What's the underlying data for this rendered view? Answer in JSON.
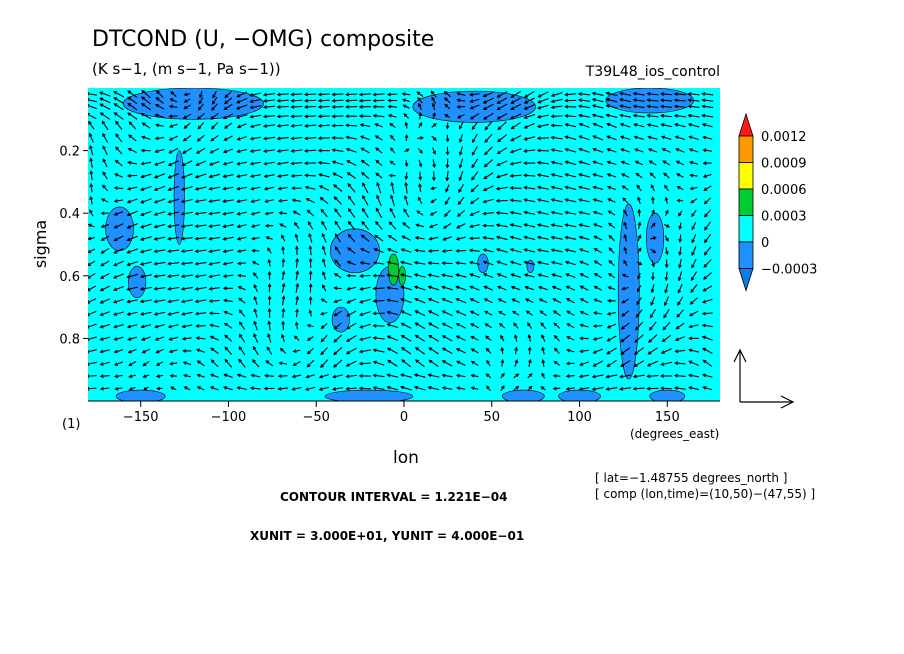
{
  "chart_data": {
    "type": "contour-vector",
    "title": "DTCOND (U, −OMG) composite",
    "subtitle": "(K s−1, (m s−1, Pa s−1))",
    "run_label": "T39L48_ios_control",
    "xlabel": "lon",
    "xunits": "(degrees_east)",
    "ylabel": "sigma",
    "panel_tag": "(1)",
    "xlim": [
      -180,
      180
    ],
    "ylim": [
      1.0,
      0.0
    ],
    "xticks": [
      -150,
      -100,
      -50,
      0,
      50,
      100,
      150
    ],
    "xtick_labels": [
      "−150",
      "−100",
      "−50",
      "0",
      "50",
      "100",
      "150"
    ],
    "yticks": [
      0.2,
      0.4,
      0.6,
      0.8
    ],
    "ytick_labels": [
      "0.2",
      "0.4",
      "0.6",
      "0.8"
    ],
    "contour_interval": "CONTOUR INTERVAL = 1.221E−04",
    "vector_units": "XUNIT = 3.000E+01, YUNIT = 4.000E−01",
    "info_lines": [
      "[ lat=−1.48755 degrees_north ]",
      "[ comp (lon,time)=(10,50)−(47,55) ]"
    ],
    "colorbar": {
      "levels": [
        -0.0003,
        0,
        0.0003,
        0.0006,
        0.0009,
        0.0012
      ],
      "labels": [
        "−0.0003",
        "0",
        "0.0003",
        "0.0006",
        "0.0009",
        "0.0012"
      ],
      "colors": [
        "#1e90ff",
        "#00ffff",
        "#00cc33",
        "#ffff00",
        "#ff9900",
        "#ff1a1a",
        "#0a7de6"
      ]
    },
    "field": {
      "background_color": "#00ffff",
      "negative_color": "#1e90ff",
      "positive_colors": [
        "#00cc33",
        "#ffff00"
      ],
      "negative_regions": [
        {
          "lon": -162,
          "sigma": 0.45,
          "rlon": 8,
          "rsig": 0.07
        },
        {
          "lon": -152,
          "sigma": 0.62,
          "rlon": 5,
          "rsig": 0.05
        },
        {
          "lon": -28,
          "sigma": 0.52,
          "rlon": 14,
          "rsig": 0.07
        },
        {
          "lon": -36,
          "sigma": 0.74,
          "rlon": 5,
          "rsig": 0.04
        },
        {
          "lon": -8,
          "sigma": 0.66,
          "rlon": 8,
          "rsig": 0.09
        },
        {
          "lon": -128,
          "sigma": 0.35,
          "rlon": 3,
          "rsig": 0.15
        },
        {
          "lon": 128,
          "sigma": 0.65,
          "rlon": 6,
          "rsig": 0.28
        },
        {
          "lon": 143,
          "sigma": 0.48,
          "rlon": 5,
          "rsig": 0.08
        },
        {
          "lon": 45,
          "sigma": 0.56,
          "rlon": 3,
          "rsig": 0.03
        },
        {
          "lon": 72,
          "sigma": 0.57,
          "rlon": 2,
          "rsig": 0.02
        },
        {
          "lon": -150,
          "sigma": 0.985,
          "rlon": 14,
          "rsig": 0.02
        },
        {
          "lon": -20,
          "sigma": 0.985,
          "rlon": 25,
          "rsig": 0.02
        },
        {
          "lon": 68,
          "sigma": 0.985,
          "rlon": 12,
          "rsig": 0.02
        },
        {
          "lon": 100,
          "sigma": 0.985,
          "rlon": 12,
          "rsig": 0.02
        },
        {
          "lon": 150,
          "sigma": 0.985,
          "rlon": 10,
          "rsig": 0.02
        },
        {
          "lon": -120,
          "sigma": 0.05,
          "rlon": 40,
          "rsig": 0.05
        },
        {
          "lon": 40,
          "sigma": 0.06,
          "rlon": 35,
          "rsig": 0.05
        },
        {
          "lon": 140,
          "sigma": 0.04,
          "rlon": 25,
          "rsig": 0.04
        }
      ],
      "positive_regions": [
        {
          "lon": -6,
          "sigma": 0.58,
          "rlon": 3,
          "rsig": 0.05,
          "level": 0
        },
        {
          "lon": -1,
          "sigma": 0.6,
          "rlon": 2,
          "rsig": 0.03,
          "level": 0
        }
      ]
    },
    "vectors": {
      "lon_start": -178,
      "lon_step": 7.8,
      "sigma_levels": [
        0.02,
        0.04,
        0.06,
        0.09,
        0.12,
        0.16,
        0.2,
        0.24,
        0.28,
        0.32,
        0.36,
        0.4,
        0.44,
        0.48,
        0.52,
        0.56,
        0.6,
        0.64,
        0.68,
        0.72,
        0.76,
        0.8,
        0.84,
        0.88,
        0.92,
        0.96
      ],
      "reference_arrow": {
        "u": 30,
        "omg": 0.4
      }
    }
  }
}
